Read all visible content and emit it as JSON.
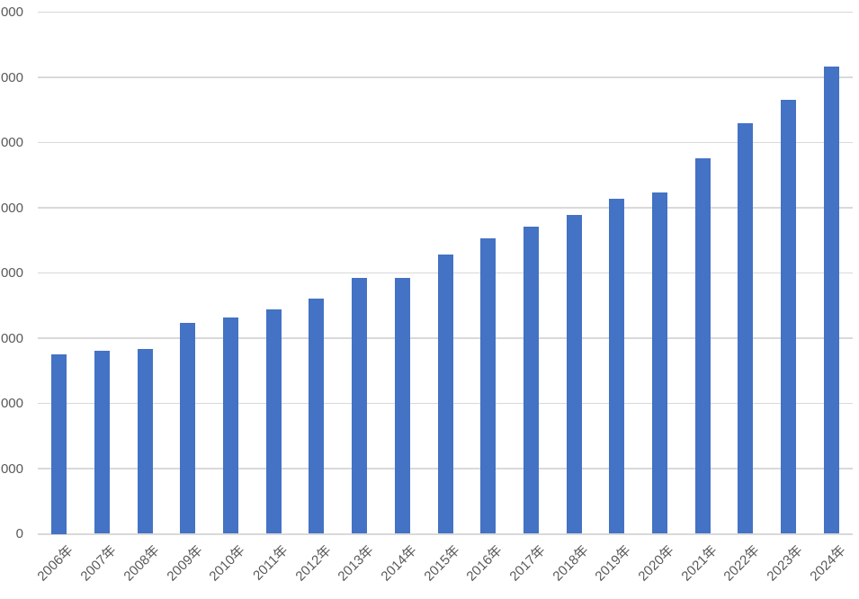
{
  "chart_data": {
    "type": "bar",
    "title": "",
    "xlabel": "",
    "ylabel": "",
    "categories": [
      "2006年",
      "2007年",
      "2008年",
      "2009年",
      "2010年",
      "2011年",
      "2012年",
      "2013年",
      "2014年",
      "2015年",
      "2016年",
      "2017年",
      "2018年",
      "2019年",
      "2020年",
      "2021年",
      "2022年",
      "2023年",
      "2024年"
    ],
    "values": [
      27500,
      28100,
      28400,
      32400,
      33200,
      34400,
      36100,
      39200,
      39300,
      42800,
      45300,
      47100,
      48900,
      51400,
      52300,
      57600,
      62900,
      66600,
      71600
    ],
    "ylim": [
      0,
      80000
    ],
    "ytick_interval": 10000,
    "yticklabels_visible": [
      "000",
      "000",
      "000",
      "000",
      "000",
      "000",
      "000",
      "000",
      "0"
    ],
    "yticklabels_clipped_note": "y-axis tick labels are cut off at the left edge of the screenshot; only the trailing digits '000' (and the bottom '0') are visible",
    "grid": true,
    "legend": false,
    "bar_color": "#4472C4",
    "gridline_color": "#D9D9D9",
    "axis_label_color": "#595959",
    "background": "#FFFFFF"
  }
}
